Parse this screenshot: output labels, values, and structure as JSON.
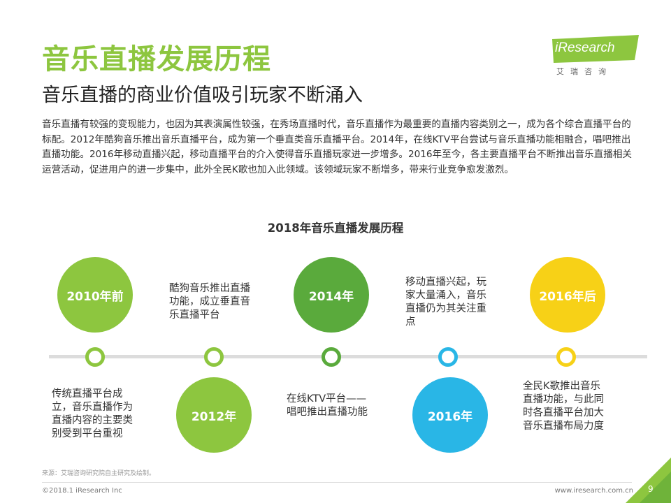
{
  "header": {
    "title": "音乐直播发展历程",
    "subtitle": "音乐直播的商业价值吸引玩家不断涌入"
  },
  "logo": {
    "text": "iResearch",
    "sub": "艾瑞咨询"
  },
  "body": {
    "paragraph": "音乐直播有较强的变现能力，也因为其表演属性较强，在秀场直播时代，音乐直播作为最重要的直播内容类别之一，成为各个综合直播平台的标配。2012年酷狗音乐推出音乐直播平台，成为第一个垂直类音乐直播平台。2014年，在线KTV平台尝试与音乐直播功能相融合，唱吧推出直播功能。2016年移动直播兴起，移动直播平台的介入使得音乐直播玩家进一步增多。2016年至今，各主要直播平台不断推出音乐直播相关运营活动，促进用户的进一步集中，此外全民K歌也加入此领域。该领域玩家不断增多，带来行业竞争愈发激烈。"
  },
  "chart": {
    "title": "2018年音乐直播发展历程"
  },
  "timeline": [
    {
      "label": "2010年前",
      "color": "#8dc63f",
      "desc": "传统直播平台成立，音乐直播作为直播内容的主要类别受到平台重视"
    },
    {
      "label": "2012年",
      "color": "#8dc63f",
      "desc": "酷狗音乐推出直播功能，成立垂直音乐直播平台"
    },
    {
      "label": "2014年",
      "color": "#5aaa3c",
      "desc": "在线KTV平台——唱吧推出直播功能"
    },
    {
      "label": "2016年",
      "color": "#29b6e6",
      "desc": "移动直播兴起，玩家大量涌入，音乐直播仍为其关注重点"
    },
    {
      "label": "2016年后",
      "color": "#f7d117",
      "desc": "全民K歌推出音乐直播功能，与此同时各直播平台加大音乐直播布局力度"
    }
  ],
  "footer": {
    "source": "来源：艾瑞咨询研究院自主研究及绘制。",
    "copyright": "©2018.1 iResearch Inc",
    "website": "www.iresearch.com.cn",
    "page": "9"
  },
  "colors": {
    "brand_green": "#8dc63f",
    "dark_green": "#5aaa3c",
    "blue": "#29b6e6",
    "yellow": "#f7d117"
  }
}
